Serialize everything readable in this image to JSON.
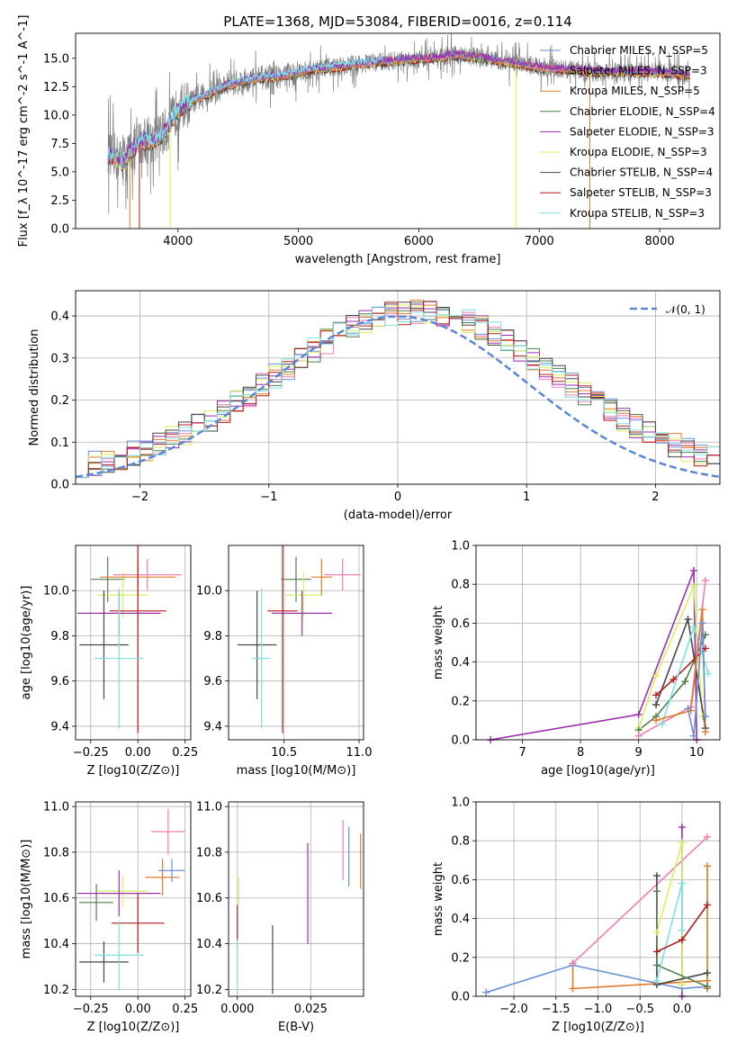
{
  "colors": {
    "chabrier_miles": "#6b8fd6",
    "salpeter_miles": "#f07fb2",
    "kroupa_miles": "#e07b2a",
    "chabrier_elodie": "#4f7f4f",
    "salpeter_elodie": "#9b2fae",
    "kroupa_elodie": "#d8f060",
    "chabrier_stelib": "#454545",
    "salpeter_stelib": "#b51c1c",
    "kroupa_stelib": "#7fe0e0",
    "data": "#7f7f7f",
    "normal": "#5b86d6",
    "grid": "#b0b0b0"
  },
  "chart_data": [
    {
      "id": "spectrum",
      "type": "line",
      "title": "PLATE=1368, MJD=53084, FIBERID=0016, z=0.114",
      "xlabel": "wavelength [Angstrom, rest frame]",
      "ylabel": "Flux [f_λ 10^-17 erg cm^-2 s^-1 A^-1]",
      "xlim": [
        3150,
        8500
      ],
      "ylim": [
        0,
        17.2
      ],
      "xticks": [
        "4000",
        "5000",
        "6000",
        "7000",
        "8000"
      ],
      "yticks": [
        "0.0",
        "2.5",
        "5.0",
        "7.5",
        "10.0",
        "12.5",
        "15.0"
      ],
      "legend": [
        {
          "name": "Chabrier MILES, N_SSP=5",
          "color_key": "chabrier_miles"
        },
        {
          "name": "Salpeter MILES, N_SSP=3",
          "color_key": "salpeter_miles"
        },
        {
          "name": "Kroupa MILES, N_SSP=5",
          "color_key": "kroupa_miles"
        },
        {
          "name": "Chabrier ELODIE, N_SSP=4",
          "color_key": "chabrier_elodie"
        },
        {
          "name": "Salpeter ELODIE, N_SSP=3",
          "color_key": "salpeter_elodie"
        },
        {
          "name": "Kroupa ELODIE, N_SSP=3",
          "color_key": "kroupa_elodie"
        },
        {
          "name": "Chabrier STELIB, N_SSP=4",
          "color_key": "chabrier_stelib"
        },
        {
          "name": "Salpeter STELIB, N_SSP=3",
          "color_key": "salpeter_stelib"
        },
        {
          "name": "Kroupa STELIB, N_SSP=3",
          "color_key": "kroupa_stelib"
        }
      ],
      "legend_position": "top-right",
      "continuum": [
        [
          3420,
          6.6
        ],
        [
          3500,
          6.2
        ],
        [
          3550,
          5.8
        ],
        [
          3620,
          7.0
        ],
        [
          3700,
          7.7
        ],
        [
          3800,
          7.8
        ],
        [
          3900,
          8.6
        ],
        [
          3950,
          9.6
        ],
        [
          4000,
          10.5
        ],
        [
          4100,
          11.1
        ],
        [
          4200,
          11.6
        ],
        [
          4300,
          12.1
        ],
        [
          4400,
          12.6
        ],
        [
          4500,
          12.9
        ],
        [
          4700,
          13.3
        ],
        [
          4900,
          13.5
        ],
        [
          5100,
          14.0
        ],
        [
          5300,
          14.2
        ],
        [
          5500,
          14.5
        ],
        [
          5700,
          14.7
        ],
        [
          5900,
          14.9
        ],
        [
          6100,
          15.0
        ],
        [
          6300,
          15.3
        ],
        [
          6500,
          15.1
        ],
        [
          6700,
          14.7
        ],
        [
          6900,
          14.4
        ],
        [
          7100,
          14.1
        ],
        [
          7300,
          14.0
        ],
        [
          7500,
          13.8
        ],
        [
          7700,
          13.8
        ],
        [
          7900,
          13.8
        ],
        [
          8100,
          13.7
        ],
        [
          8250,
          13.5
        ]
      ],
      "model_range": [
        3420,
        7600
      ]
    },
    {
      "id": "residuals",
      "type": "line",
      "xlabel": "(data-model)/error",
      "ylabel": "Normed distribution",
      "xlim": [
        -2.5,
        2.5
      ],
      "ylim": [
        0,
        0.46
      ],
      "xticks": [
        "−2",
        "−1",
        "0",
        "1",
        "2"
      ],
      "yticks": [
        "0.0",
        "0.1",
        "0.2",
        "0.3",
        "0.4"
      ],
      "legend": [
        {
          "name": "𝒩(0, 1)",
          "color_key": "normal"
        }
      ],
      "legend_position": "top-right",
      "bins": 50
    },
    {
      "id": "age-vs-z",
      "type": "scatter",
      "xlabel": "Z [log10(Z/Z⊙)]",
      "ylabel": "age  [log10(age/yr)]",
      "xlim": [
        -0.33,
        0.28
      ],
      "ylim": [
        9.34,
        10.2
      ],
      "xticks": [
        "−0.25",
        "0.00",
        "0.25"
      ],
      "yticks": [
        "9.4",
        "9.6",
        "9.8",
        "10.0"
      ],
      "points": [
        {
          "color_key": "chabrier_elodie",
          "x": -0.16,
          "xerr": 0.09,
          "y": 10.05,
          "yerr": 0.1
        },
        {
          "color_key": "kroupa_elodie",
          "x": -0.08,
          "xerr": 0.13,
          "y": 9.98,
          "yerr": 0.1
        },
        {
          "color_key": "salpeter_elodie",
          "x": -0.1,
          "xerr": 0.22,
          "y": 9.9,
          "yerr": 0.1
        },
        {
          "color_key": "kroupa_miles",
          "x": 0.0,
          "xerr": 0.2,
          "y": 10.06,
          "yerr": 0.08
        },
        {
          "color_key": "salpeter_miles",
          "x": 0.05,
          "xerr": 0.18,
          "y": 10.07,
          "yerr": 0.07
        },
        {
          "color_key": "salpeter_stelib",
          "x": 0.0,
          "xerr": 0.15,
          "y": 9.91,
          "yerr": 0.54
        },
        {
          "color_key": "chabrier_stelib",
          "x": -0.18,
          "xerr": 0.13,
          "y": 9.76,
          "yerr": 0.24
        },
        {
          "color_key": "kroupa_stelib",
          "x": -0.1,
          "xerr": 0.13,
          "y": 9.7,
          "yerr": 0.31
        }
      ]
    },
    {
      "id": "age-vs-mass",
      "type": "scatter",
      "xlabel": "mass [log10(M/M⊙)]",
      "ylabel": "",
      "xlim": [
        10.13,
        11.03
      ],
      "ylim": [
        9.34,
        10.2
      ],
      "xticks": [
        "10.0",
        "10.5",
        "11.0"
      ],
      "yticks": [
        "9.4",
        "9.6",
        "9.8",
        "10.0"
      ],
      "points": [
        {
          "color_key": "chabrier_elodie",
          "x": 10.58,
          "xerr": 0.1,
          "y": 10.05,
          "yerr": 0.1
        },
        {
          "color_key": "kroupa_elodie",
          "x": 10.63,
          "xerr": 0.12,
          "y": 9.98,
          "yerr": 0.1
        },
        {
          "color_key": "salpeter_elodie",
          "x": 10.62,
          "xerr": 0.2,
          "y": 9.9,
          "yerr": 0.1
        },
        {
          "color_key": "kroupa_miles",
          "x": 10.75,
          "xerr": 0.07,
          "y": 10.06,
          "yerr": 0.08
        },
        {
          "color_key": "salpeter_miles",
          "x": 10.89,
          "xerr": 0.12,
          "y": 10.07,
          "yerr": 0.07
        },
        {
          "color_key": "salpeter_stelib",
          "x": 10.49,
          "xerr": 0.1,
          "y": 9.91,
          "yerr": 0.54
        },
        {
          "color_key": "chabrier_stelib",
          "x": 10.32,
          "xerr": 0.13,
          "y": 9.76,
          "yerr": 0.24
        },
        {
          "color_key": "kroupa_stelib",
          "x": 10.35,
          "xerr": 0.06,
          "y": 9.7,
          "yerr": 0.31
        }
      ]
    },
    {
      "id": "weight-vs-age",
      "type": "line",
      "xlabel": "age  [log10(age/yr)]",
      "ylabel": "mass weight",
      "xlim": [
        6.2,
        10.4
      ],
      "ylim": [
        0,
        1.0
      ],
      "xticks": [
        "7",
        "8",
        "9",
        "10"
      ],
      "yticks": [
        "0.0",
        "0.2",
        "0.4",
        "0.6",
        "0.8",
        "1.0"
      ],
      "series": [
        {
          "color_key": "salpeter_elodie",
          "x": [
            6.45,
            9.0,
            9.95,
            10.0
          ],
          "y": [
            0.0,
            0.13,
            0.87,
            0.0
          ]
        },
        {
          "color_key": "kroupa_elodie",
          "x": [
            9.0,
            9.3,
            9.95,
            10.1
          ],
          "y": [
            0.06,
            0.33,
            0.79,
            0.12
          ]
        },
        {
          "color_key": "chabrier_elodie",
          "x": [
            9.0,
            9.3,
            9.8,
            10.15
          ],
          "y": [
            0.05,
            0.12,
            0.3,
            0.54
          ]
        },
        {
          "color_key": "chabrier_stelib",
          "x": [
            9.3,
            9.85,
            10.15
          ],
          "y": [
            0.18,
            0.62,
            0.06
          ]
        },
        {
          "color_key": "salpeter_stelib",
          "x": [
            9.3,
            9.6,
            10.15
          ],
          "y": [
            0.23,
            0.31,
            0.47
          ]
        },
        {
          "color_key": "kroupa_stelib",
          "x": [
            9.4,
            9.95,
            10.2
          ],
          "y": [
            0.08,
            0.58,
            0.34
          ]
        },
        {
          "color_key": "salpeter_miles",
          "x": [
            9.0,
            9.9,
            10.15
          ],
          "y": [
            0.02,
            0.17,
            0.82
          ]
        },
        {
          "color_key": "kroupa_miles",
          "x": [
            9.3,
            9.9,
            10.1,
            10.15
          ],
          "y": [
            0.1,
            0.15,
            0.67,
            0.04
          ]
        },
        {
          "color_key": "chabrier_miles",
          "x": [
            9.85,
            9.95,
            10.1,
            10.15
          ],
          "y": [
            0.16,
            0.02,
            0.6,
            0.12
          ]
        }
      ]
    },
    {
      "id": "mass-vs-z",
      "type": "scatter",
      "xlabel": "Z [log10(Z/Z⊙)]",
      "ylabel": "mass [log10(M/M⊙)]",
      "xlim": [
        -0.33,
        0.28
      ],
      "ylim": [
        10.17,
        11.02
      ],
      "xticks": [
        "−0.25",
        "0.00",
        "0.25"
      ],
      "yticks": [
        "10.2",
        "10.4",
        "10.6",
        "10.8",
        "11.0"
      ],
      "points": [
        {
          "color_key": "chabrier_elodie",
          "x": -0.22,
          "xerr": 0.09,
          "y": 10.58,
          "yerr": 0.08
        },
        {
          "color_key": "kroupa_elodie",
          "x": -0.08,
          "xerr": 0.13,
          "y": 10.63,
          "yerr": 0.07
        },
        {
          "color_key": "salpeter_elodie",
          "x": -0.1,
          "xerr": 0.22,
          "y": 10.62,
          "yerr": 0.1
        },
        {
          "color_key": "kroupa_miles",
          "x": 0.13,
          "xerr": 0.09,
          "y": 10.69,
          "yerr": 0.08
        },
        {
          "color_key": "salpeter_miles",
          "x": 0.16,
          "xerr": 0.09,
          "y": 10.89,
          "yerr": 0.1
        },
        {
          "color_key": "chabrier_miles",
          "x": 0.18,
          "xerr": 0.07,
          "y": 10.72,
          "yerr": 0.05
        },
        {
          "color_key": "salpeter_stelib",
          "x": 0.0,
          "xerr": 0.14,
          "y": 10.49,
          "yerr": 0.13
        },
        {
          "color_key": "chabrier_stelib",
          "x": -0.18,
          "xerr": 0.13,
          "y": 10.32,
          "yerr": 0.09
        },
        {
          "color_key": "kroupa_stelib",
          "x": -0.1,
          "xerr": 0.13,
          "y": 10.35,
          "yerr": 0.15
        }
      ]
    },
    {
      "id": "mass-vs-ebv",
      "type": "scatter",
      "xlabel": "E(B-V)",
      "ylabel": "",
      "xlim": [
        -0.003,
        0.043
      ],
      "ylim": [
        10.17,
        11.02
      ],
      "xticks": [
        "0.000",
        "0.025"
      ],
      "yticks": [
        "10.2",
        "10.4",
        "10.6",
        "10.8",
        "11.0"
      ],
      "points": [
        {
          "color_key": "kroupa_elodie",
          "x": 0.0005,
          "xerr": 0,
          "y": 10.63,
          "yerr": 0.06
        },
        {
          "color_key": "salpeter_stelib",
          "x": 0.0,
          "xerr": 0,
          "y": 10.49,
          "yerr": 0.08
        },
        {
          "color_key": "kroupa_stelib",
          "x": 0.0,
          "xerr": 0,
          "y": 10.3,
          "yerr": 0.12
        },
        {
          "color_key": "chabrier_stelib",
          "x": 0.012,
          "xerr": 0,
          "y": 10.33,
          "yerr": 0.15
        },
        {
          "color_key": "salpeter_elodie",
          "x": 0.024,
          "xerr": 0,
          "y": 10.62,
          "yerr": 0.22
        },
        {
          "color_key": "salpeter_miles",
          "x": 0.036,
          "xerr": 0,
          "y": 10.81,
          "yerr": 0.13
        },
        {
          "color_key": "chabrier_miles",
          "x": 0.038,
          "xerr": 0,
          "y": 10.78,
          "yerr": 0.13
        },
        {
          "color_key": "kroupa_miles",
          "x": 0.042,
          "xerr": 0,
          "y": 10.76,
          "yerr": 0.12
        }
      ]
    },
    {
      "id": "weight-vs-z",
      "type": "line",
      "xlabel": "Z [log10(Z/Z⊙)]",
      "ylabel": "mass weight",
      "xlim": [
        -2.45,
        0.45
      ],
      "ylim": [
        0,
        1.0
      ],
      "xticks": [
        "−2.0",
        "−1.5",
        "−1.0",
        "−0.5",
        "0.0"
      ],
      "yticks": [
        "0.0",
        "0.2",
        "0.4",
        "0.6",
        "0.8",
        "1.0"
      ],
      "series": [
        {
          "color_key": "chabrier_miles",
          "x": [
            -2.33,
            -1.3,
            0.0,
            0.3
          ],
          "y": [
            0.02,
            0.16,
            0.04,
            0.05
          ]
        },
        {
          "color_key": "kroupa_miles",
          "x": [
            -1.3,
            -1.3,
            0.3,
            0.3,
            0.3
          ],
          "y": [
            0.17,
            0.04,
            0.08,
            0.67,
            0.04
          ]
        },
        {
          "color_key": "salpeter_miles",
          "x": [
            -1.3,
            0.3
          ],
          "y": [
            0.17,
            0.82
          ]
        },
        {
          "color_key": "salpeter_elodie",
          "x": [
            0.0,
            0.0
          ],
          "y": [
            0.87,
            0.0
          ]
        },
        {
          "color_key": "kroupa_elodie",
          "x": [
            -0.3,
            0.0,
            0.0
          ],
          "y": [
            0.33,
            0.79,
            0.06
          ]
        },
        {
          "color_key": "chabrier_stelib",
          "x": [
            -0.3,
            -0.3,
            0.3
          ],
          "y": [
            0.62,
            0.06,
            0.12
          ]
        },
        {
          "color_key": "chabrier_elodie",
          "x": [
            -0.3,
            -0.3,
            0.3
          ],
          "y": [
            0.54,
            0.16,
            0.05
          ]
        },
        {
          "color_key": "kroupa_stelib",
          "x": [
            -0.3,
            0.0,
            0.0
          ],
          "y": [
            0.08,
            0.58,
            0.34
          ]
        },
        {
          "color_key": "salpeter_stelib",
          "x": [
            -0.3,
            0.0,
            0.3
          ],
          "y": [
            0.23,
            0.29,
            0.47
          ]
        }
      ]
    }
  ]
}
